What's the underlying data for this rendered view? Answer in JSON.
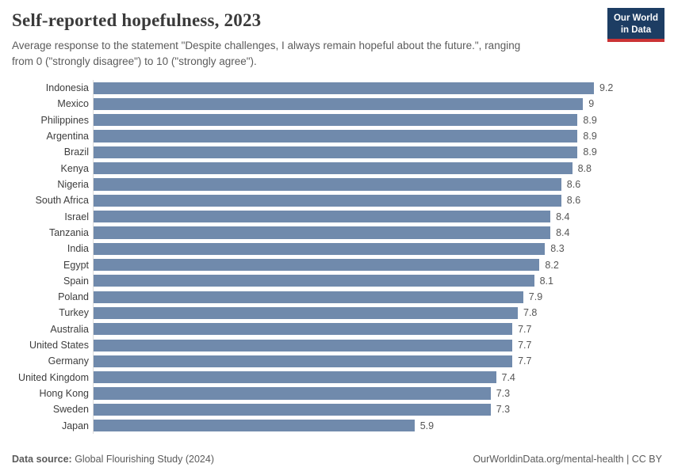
{
  "header": {
    "title": "Self-reported hopefulness, 2023",
    "subtitle_line1": "Average response to the statement \"Despite challenges, I always remain hopeful about the future.\", ranging",
    "subtitle_line2": "from 0 (\"strongly disagree\") to 10 (\"strongly agree\").",
    "logo_line1": "Our World",
    "logo_line2": "in Data"
  },
  "chart_data": {
    "type": "bar",
    "orientation": "horizontal",
    "title": "Self-reported hopefulness, 2023",
    "xlabel": "",
    "ylabel": "",
    "xlim": [
      0,
      9.2
    ],
    "grid": false,
    "legend": false,
    "categories": [
      "Indonesia",
      "Mexico",
      "Philippines",
      "Argentina",
      "Brazil",
      "Kenya",
      "Nigeria",
      "South Africa",
      "Israel",
      "Tanzania",
      "India",
      "Egypt",
      "Spain",
      "Poland",
      "Turkey",
      "Australia",
      "United States",
      "Germany",
      "United Kingdom",
      "Hong Kong",
      "Sweden",
      "Japan"
    ],
    "values": [
      9.2,
      9,
      8.9,
      8.9,
      8.9,
      8.8,
      8.6,
      8.6,
      8.4,
      8.4,
      8.3,
      8.2,
      8.1,
      7.9,
      7.8,
      7.7,
      7.7,
      7.7,
      7.4,
      7.3,
      7.3,
      5.9
    ],
    "value_labels": [
      "9.2",
      "9",
      "8.9",
      "8.9",
      "8.9",
      "8.8",
      "8.6",
      "8.6",
      "8.4",
      "8.4",
      "8.3",
      "8.2",
      "8.1",
      "7.9",
      "7.8",
      "7.7",
      "7.7",
      "7.7",
      "7.4",
      "7.3",
      "7.3",
      "5.9"
    ]
  },
  "colors": {
    "bar": "#708aac",
    "logo_background": "#1d3d63",
    "logo_accent": "#cb3335",
    "axis_line": "#dbdbdb",
    "title_text": "#3a3a3a",
    "subtitle_text": "#5b5b5b"
  },
  "footer": {
    "datasource_label": "Data source:",
    "datasource_value": " Global Flourishing Study (2024)",
    "attribution": "OurWorldinData.org/mental-health | CC BY"
  }
}
